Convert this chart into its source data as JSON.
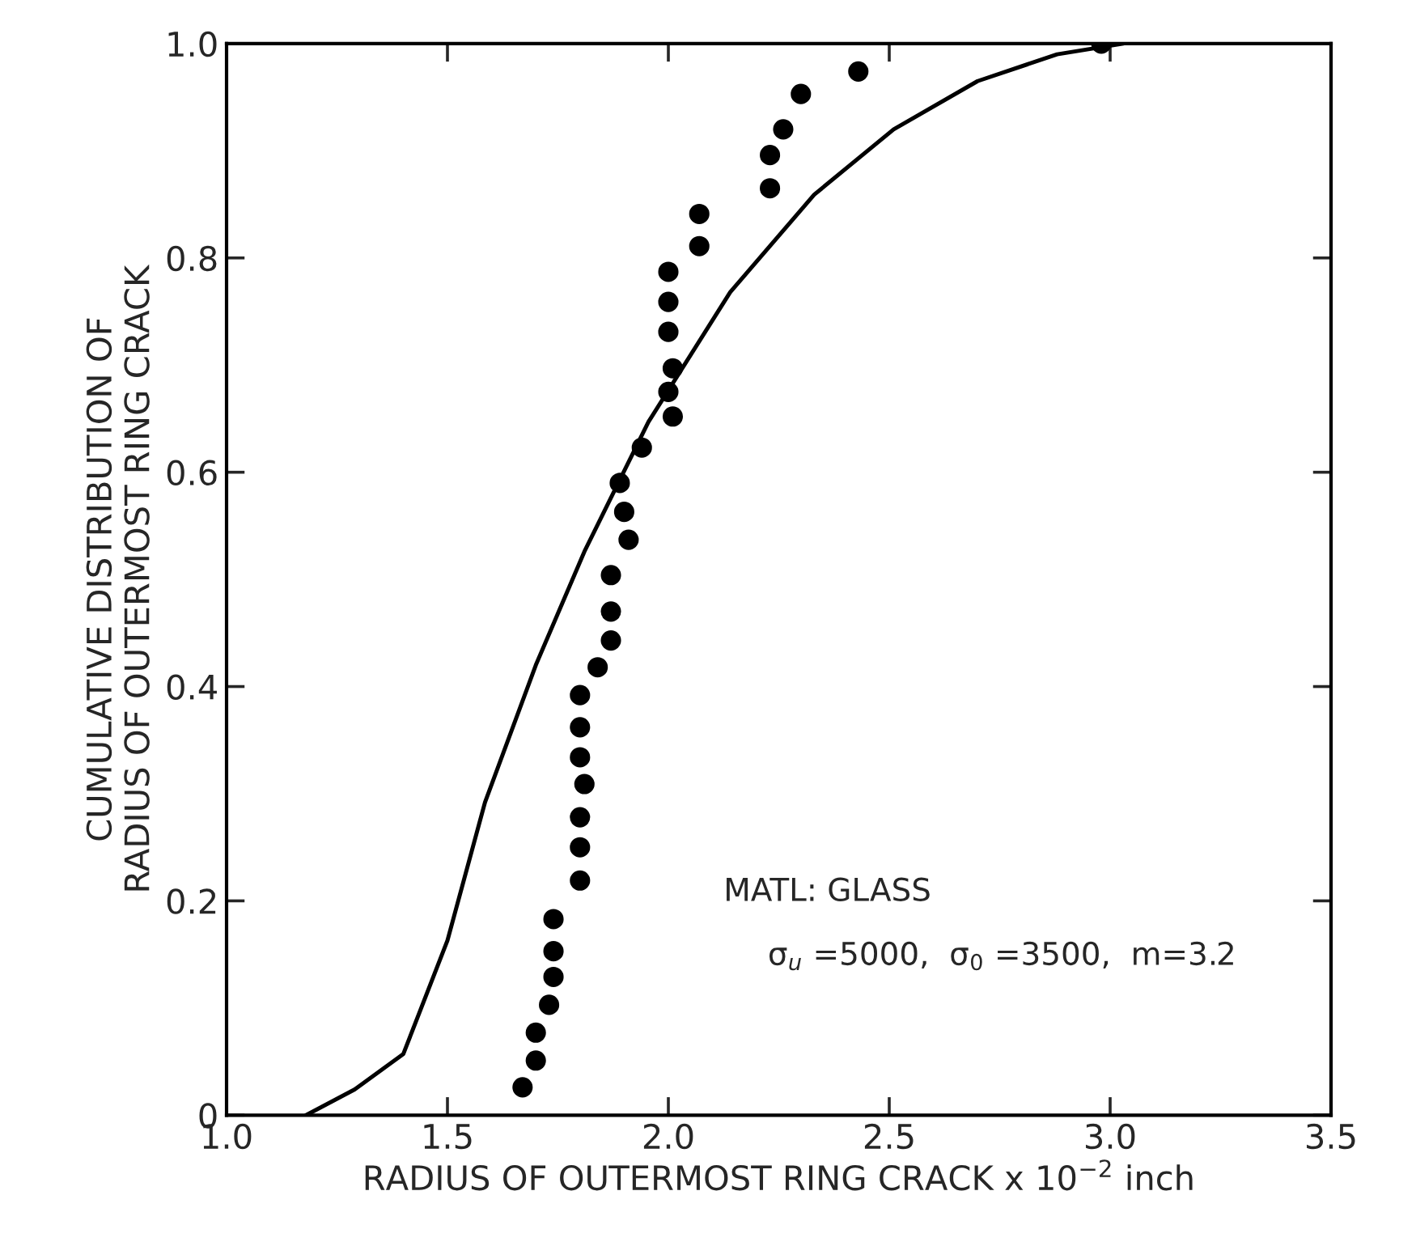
{
  "chart_data": {
    "type": "scatter",
    "xlabel": "RADIUS OF OUTERMOST RING CRACK x 10$^{−2}$ inch",
    "ylabel": "CUMULATIVE DISTRIBUTION OF\nRADIUS OF OUTERMOST RING CRACK",
    "annotations": [
      "MATL: GLASS",
      "σ$_{u}$ =5000,  σ$_{0}$ =3500,  m=3.2"
    ],
    "xlim": [
      1.0,
      3.5
    ],
    "ylim": [
      0,
      1.0
    ],
    "xticks": [
      {
        "value": 1.0,
        "label": "1.0"
      },
      1.5,
      {
        "value": 2.0,
        "label": "2.0"
      },
      2.5,
      {
        "value": 3.0,
        "label": "3.0"
      },
      3.5
    ],
    "yticks": [
      0,
      0.2,
      0.4,
      0.6,
      0.8,
      {
        "value": 1.0,
        "label": "1.0"
      }
    ],
    "grid": false,
    "legend": false,
    "series": [
      {
        "color": "#000000",
        "marker": "circle",
        "x": [
          1.67,
          1.7,
          1.7,
          1.73,
          1.74,
          1.74,
          1.74,
          1.8,
          1.8,
          1.8,
          1.81,
          1.8,
          1.8,
          1.8,
          1.84,
          1.87,
          1.87,
          1.87,
          1.91,
          1.9,
          1.89,
          1.94,
          2.01,
          2.0,
          2.01,
          2.0,
          2.0,
          2.0,
          2.07,
          2.07,
          2.23,
          2.23,
          2.26,
          2.3,
          2.43,
          2.98
        ],
        "values": [
          0.026,
          0.051,
          0.077,
          0.103,
          0.129,
          0.153,
          0.183,
          0.219,
          0.25,
          0.278,
          0.309,
          0.334,
          0.362,
          0.392,
          0.418,
          0.443,
          0.47,
          0.504,
          0.537,
          0.563,
          0.59,
          0.623,
          0.652,
          0.675,
          0.697,
          0.731,
          0.759,
          0.787,
          0.811,
          0.841,
          0.865,
          0.896,
          0.92,
          0.953,
          0.974,
          1.0
        ]
      },
      {
        "type": "line",
        "color": "#000000",
        "marker": "none",
        "line_style": "solid",
        "x": [
          1.18,
          1.29,
          1.4,
          1.5,
          1.585,
          1.7,
          1.81,
          1.955,
          2.14,
          2.33,
          2.51,
          2.7,
          2.88,
          3.03
        ],
        "values": [
          0.0,
          0.024,
          0.057,
          0.163,
          0.292,
          0.42,
          0.526,
          0.647,
          0.768,
          0.859,
          0.92,
          0.965,
          0.99,
          1.0
        ]
      }
    ]
  }
}
